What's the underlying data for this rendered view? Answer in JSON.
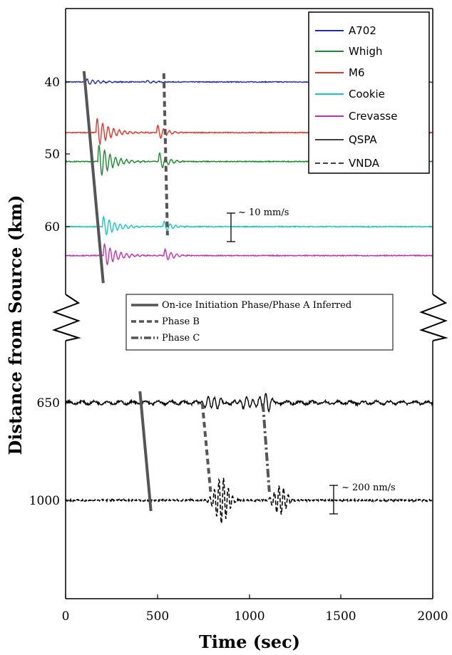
{
  "chart_data": {
    "type": "line",
    "xlabel": "Time (sec)",
    "ylabel": "Distance from Source (km)",
    "xlim": [
      0,
      2000
    ],
    "x_ticks": [
      "0",
      "500",
      "1000",
      "1500",
      "2000"
    ],
    "y_ticks_upper": [
      "40",
      "50",
      "60"
    ],
    "y_ticks_lower": [
      "650",
      "1000"
    ],
    "grid": false,
    "broken_y_axis": true,
    "series": [
      {
        "name": "A702",
        "distance_km": 40,
        "color": "#1f2ea8",
        "style": "solid",
        "amp_mm_s": 1.2,
        "onset_s": 110
      },
      {
        "name": "Whigh",
        "distance_km": 51,
        "color": "#1a8a2e",
        "style": "solid",
        "amp_mm_s": 6.5,
        "onset_s": 175
      },
      {
        "name": "M6",
        "distance_km": 47,
        "color": "#e8322a",
        "style": "solid",
        "amp_mm_s": 5.5,
        "onset_s": 165
      },
      {
        "name": "Cookie",
        "distance_km": 60,
        "color": "#19c4c4",
        "style": "solid",
        "amp_mm_s": 4.0,
        "onset_s": 200
      },
      {
        "name": "Crevasse",
        "distance_km": 64,
        "color": "#c62fb0",
        "style": "solid",
        "amp_mm_s": 4.5,
        "onset_s": 205
      },
      {
        "name": "QSPA",
        "distance_km": 650,
        "color": "#000000",
        "style": "solid",
        "amp_nm_s": 75,
        "onset_s": 400
      },
      {
        "name": "VNDA",
        "distance_km": 1000,
        "color": "#000000",
        "style": "dashed",
        "amp_nm_s": 165,
        "onset_s": 450
      }
    ],
    "phase_lines": [
      {
        "name": "On-ice Initiation Phase/Phase A Inferred",
        "style": "solid",
        "segments": [
          {
            "x": [
              100,
              205
            ],
            "y_km": [
              38.5,
              67.8
            ]
          },
          {
            "x": [
              405,
              465
            ],
            "y_km": [
              -14.5,
              17
            ]
          }
        ]
      },
      {
        "name": "Phase B",
        "style": "dashed",
        "segments": [
          {
            "x": [
              535,
              555
            ],
            "y_km": [
              38.8,
              61.2
            ]
          },
          {
            "x": [
              745,
              790
            ],
            "y_km": [
              0,
              -1
            ]
          }
        ]
      },
      {
        "name": "Phase C",
        "style": "dashdot",
        "segments": [
          {
            "x": [
              1075,
              1110
            ],
            "y_km": [
              0,
              -1
            ]
          }
        ]
      }
    ],
    "scale_bars": [
      {
        "label": "~ 10 mm/s"
      },
      {
        "label": "~ 200 nm/s"
      }
    ]
  }
}
